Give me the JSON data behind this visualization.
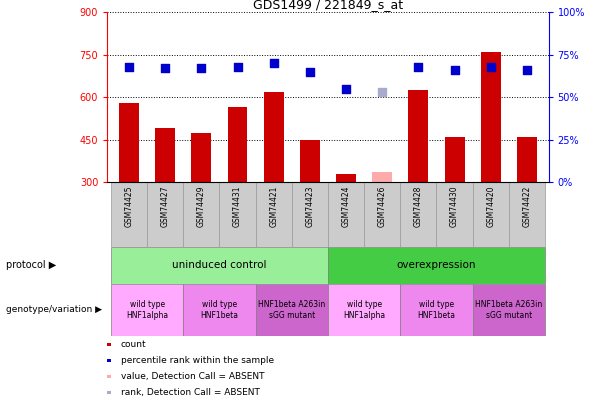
{
  "title": "GDS1499 / 221849_s_at",
  "samples": [
    "GSM74425",
    "GSM74427",
    "GSM74429",
    "GSM74431",
    "GSM74421",
    "GSM74423",
    "GSM74424",
    "GSM74426",
    "GSM74428",
    "GSM74430",
    "GSM74420",
    "GSM74422"
  ],
  "counts": [
    580,
    490,
    475,
    565,
    620,
    450,
    330,
    335,
    625,
    460,
    760,
    460
  ],
  "rank_values": [
    68,
    67,
    67,
    68,
    70,
    65,
    55,
    53,
    68,
    66,
    68,
    66
  ],
  "absent_count": [
    false,
    false,
    false,
    false,
    false,
    false,
    false,
    true,
    false,
    false,
    false,
    false
  ],
  "absent_rank": [
    false,
    false,
    false,
    false,
    false,
    false,
    false,
    true,
    false,
    false,
    false,
    false
  ],
  "bar_color_normal": "#cc0000",
  "bar_color_absent": "#ffaaaa",
  "dot_color_normal": "#0000cc",
  "dot_color_absent": "#aaaacc",
  "ylim_left": [
    300,
    900
  ],
  "ylim_right": [
    0,
    100
  ],
  "yticks_left": [
    300,
    450,
    600,
    750,
    900
  ],
  "yticks_right": [
    0,
    25,
    50,
    75,
    100
  ],
  "protocol_groups": [
    {
      "label": "uninduced control",
      "start": 0,
      "end": 6,
      "color": "#99ee99"
    },
    {
      "label": "overexpression",
      "start": 6,
      "end": 12,
      "color": "#44cc44"
    }
  ],
  "genotype_groups": [
    {
      "label": "wild type\nHNF1alpha",
      "start": 0,
      "end": 2,
      "color": "#ffaaff"
    },
    {
      "label": "wild type\nHNF1beta",
      "start": 2,
      "end": 4,
      "color": "#ee88ee"
    },
    {
      "label": "HNF1beta A263in\nsGG mutant",
      "start": 4,
      "end": 6,
      "color": "#cc66cc"
    },
    {
      "label": "wild type\nHNF1alpha",
      "start": 6,
      "end": 8,
      "color": "#ffaaff"
    },
    {
      "label": "wild type\nHNF1beta",
      "start": 8,
      "end": 10,
      "color": "#ee88ee"
    },
    {
      "label": "HNF1beta A263in\nsGG mutant",
      "start": 10,
      "end": 12,
      "color": "#cc66cc"
    }
  ],
  "legend_items": [
    {
      "label": "count",
      "color": "#cc0000"
    },
    {
      "label": "percentile rank within the sample",
      "color": "#0000cc"
    },
    {
      "label": "value, Detection Call = ABSENT",
      "color": "#ffaaaa"
    },
    {
      "label": "rank, Detection Call = ABSENT",
      "color": "#aaaacc"
    }
  ],
  "bar_width": 0.55,
  "dot_size": 40,
  "sample_bg": "#cccccc",
  "sample_edge": "#999999"
}
